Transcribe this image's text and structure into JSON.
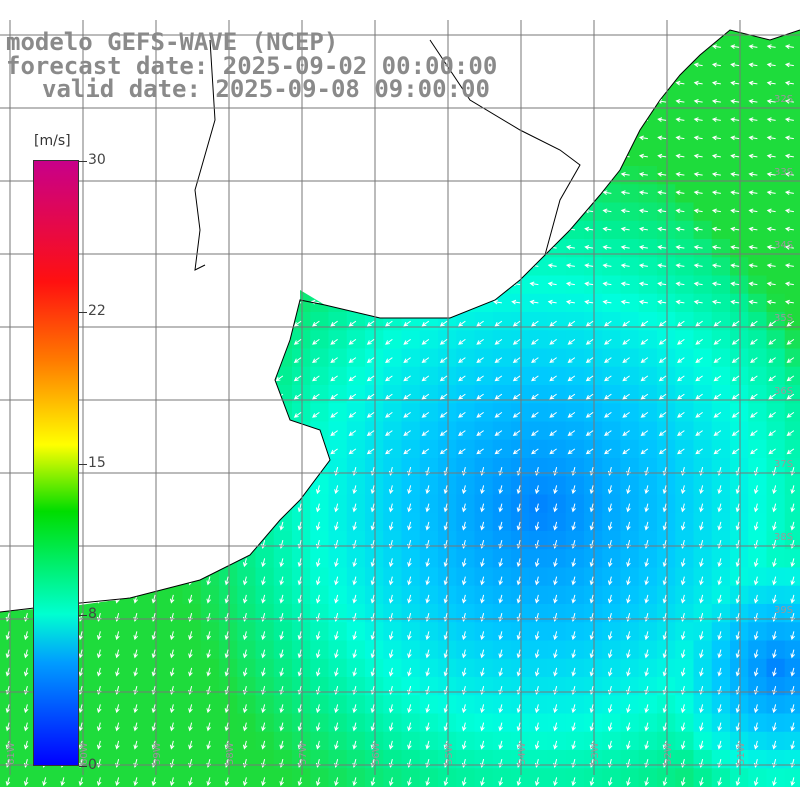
{
  "title": {
    "line1": "modelo GEFS-WAVE (NCEP)",
    "line2": "forecast date: 2025-09-02 00:00:00",
    "line3": "valid date: 2025-09-08 09:00:00"
  },
  "colorbar": {
    "unit": "[m/s]",
    "ticks": [
      "30",
      "22",
      "15",
      "8",
      "0"
    ],
    "tick_values": [
      30,
      22,
      15,
      8,
      0
    ],
    "range": [
      0,
      30
    ],
    "colors": [
      "#0000ff",
      "#009dff",
      "#00ffd0",
      "#00dd00",
      "#ffff00",
      "#ff7a00",
      "#ff1010",
      "#c8008a"
    ]
  },
  "map": {
    "region": "Rio de la Plata / South Atlantic",
    "field": "wind speed with direction arrows",
    "land_color": "#ffffff",
    "grid_color": "#777777",
    "lat_labels": [
      "32S",
      "33S",
      "34S",
      "35S",
      "36S",
      "37S",
      "38S",
      "39S"
    ],
    "lon_labels": [
      "61W",
      "60W",
      "59W",
      "58W",
      "57W",
      "56W",
      "55W",
      "54W",
      "53W",
      "52W",
      "51W"
    ]
  }
}
